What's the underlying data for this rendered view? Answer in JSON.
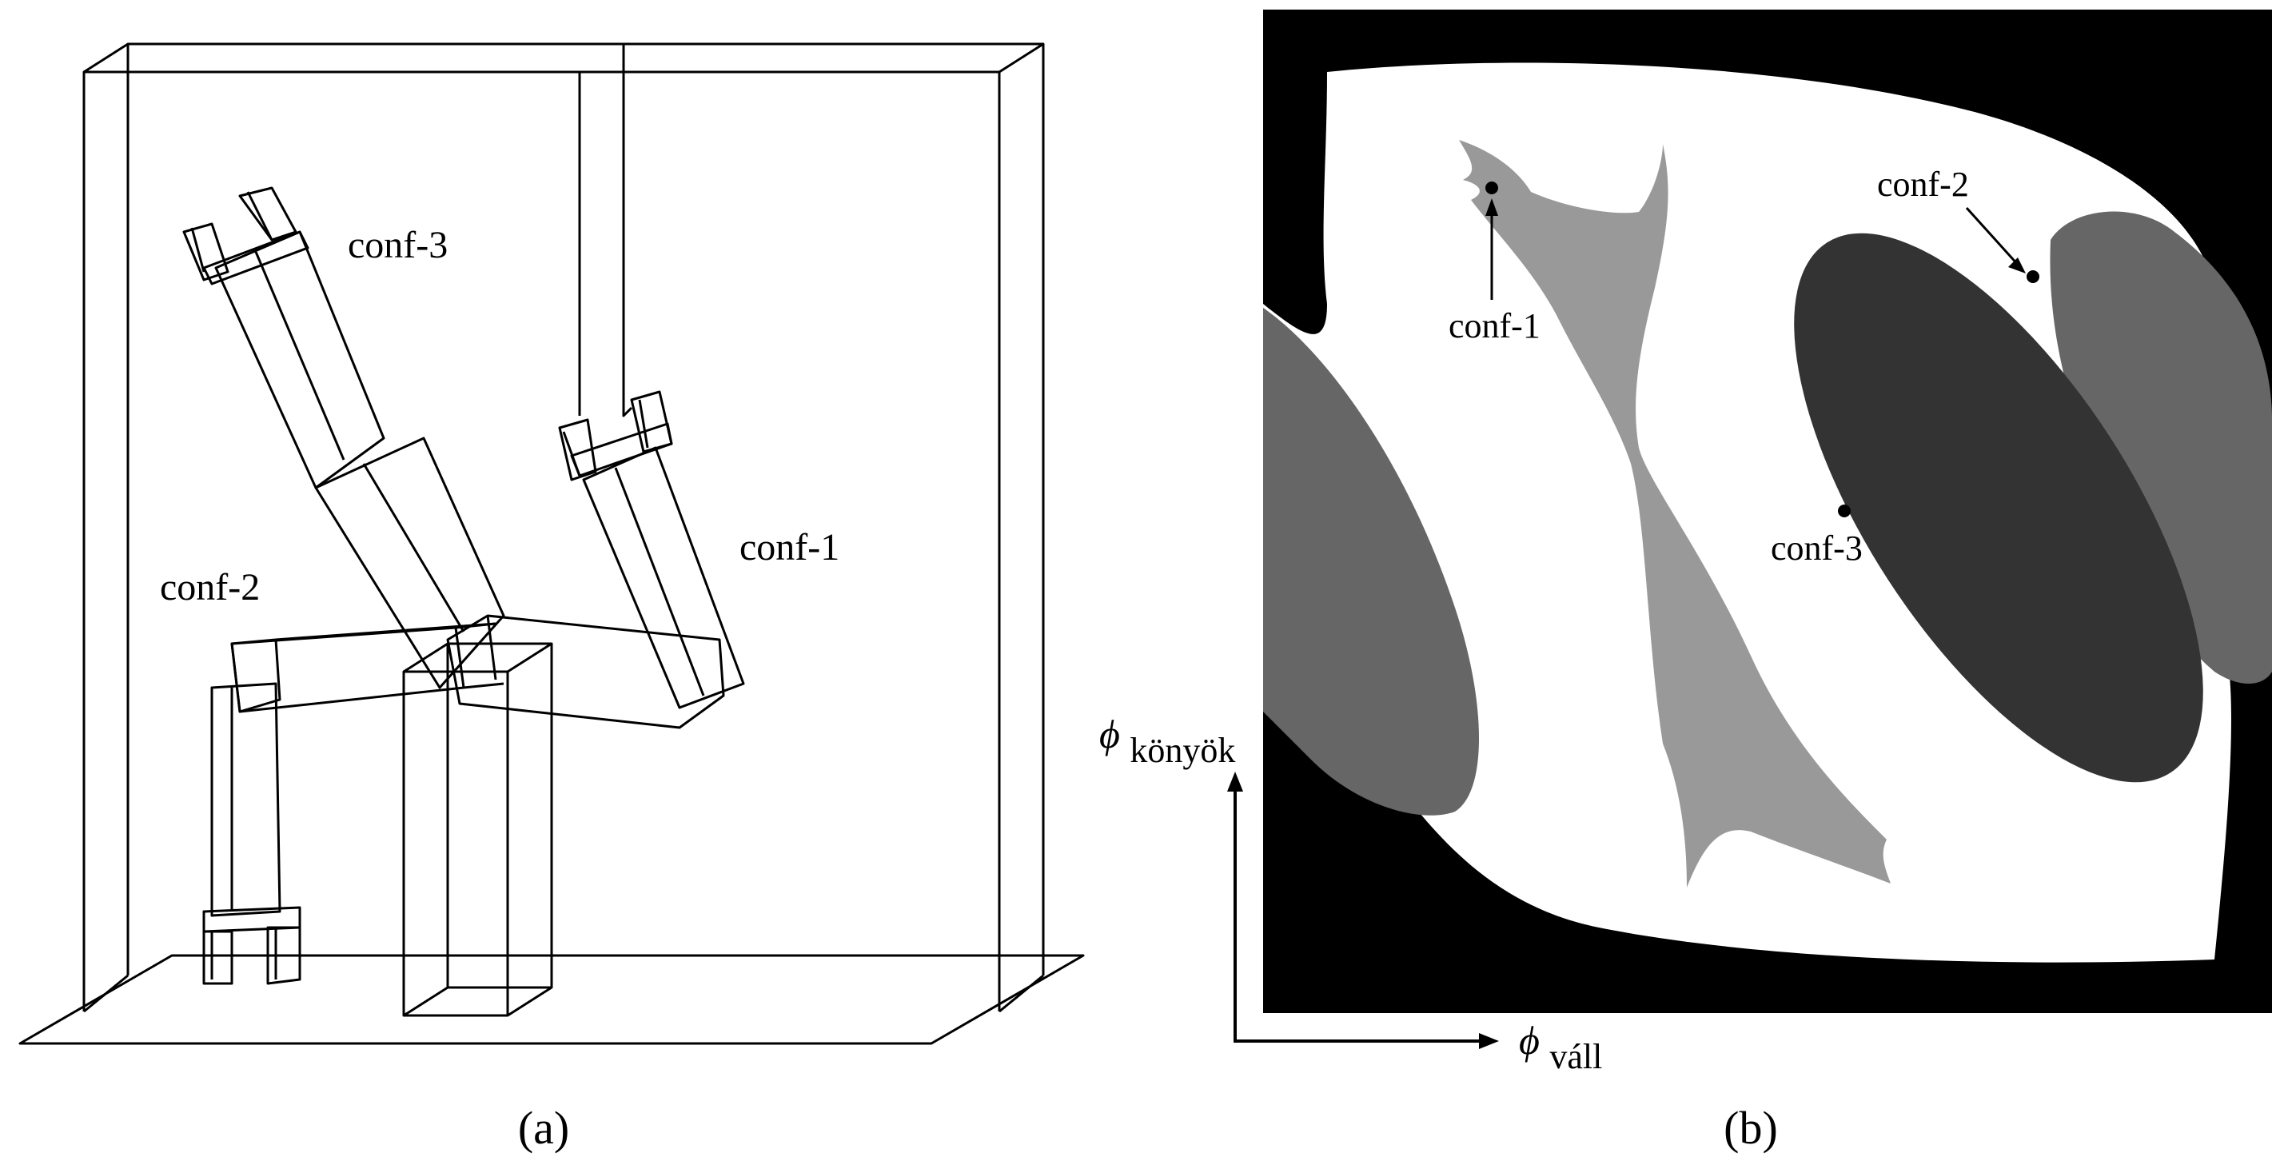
{
  "panel_a": {
    "caption": "(a)",
    "labels": {
      "conf3": "conf-3",
      "conf2": "conf-2",
      "conf1": "conf-1"
    }
  },
  "panel_b": {
    "caption": "(b)",
    "point_labels": {
      "conf1": "conf-1",
      "conf2": "conf-2",
      "conf3": "conf-3"
    },
    "axis": {
      "y_symbol": "ϕ",
      "y_subscript": "könyök",
      "x_symbol": "ϕ",
      "x_subscript": "váll"
    },
    "colors": {
      "free": "#ffffff",
      "wall_bg": "#000000",
      "region_light": "#999999",
      "region_mid": "#666666",
      "region_dark": "#333333"
    }
  }
}
